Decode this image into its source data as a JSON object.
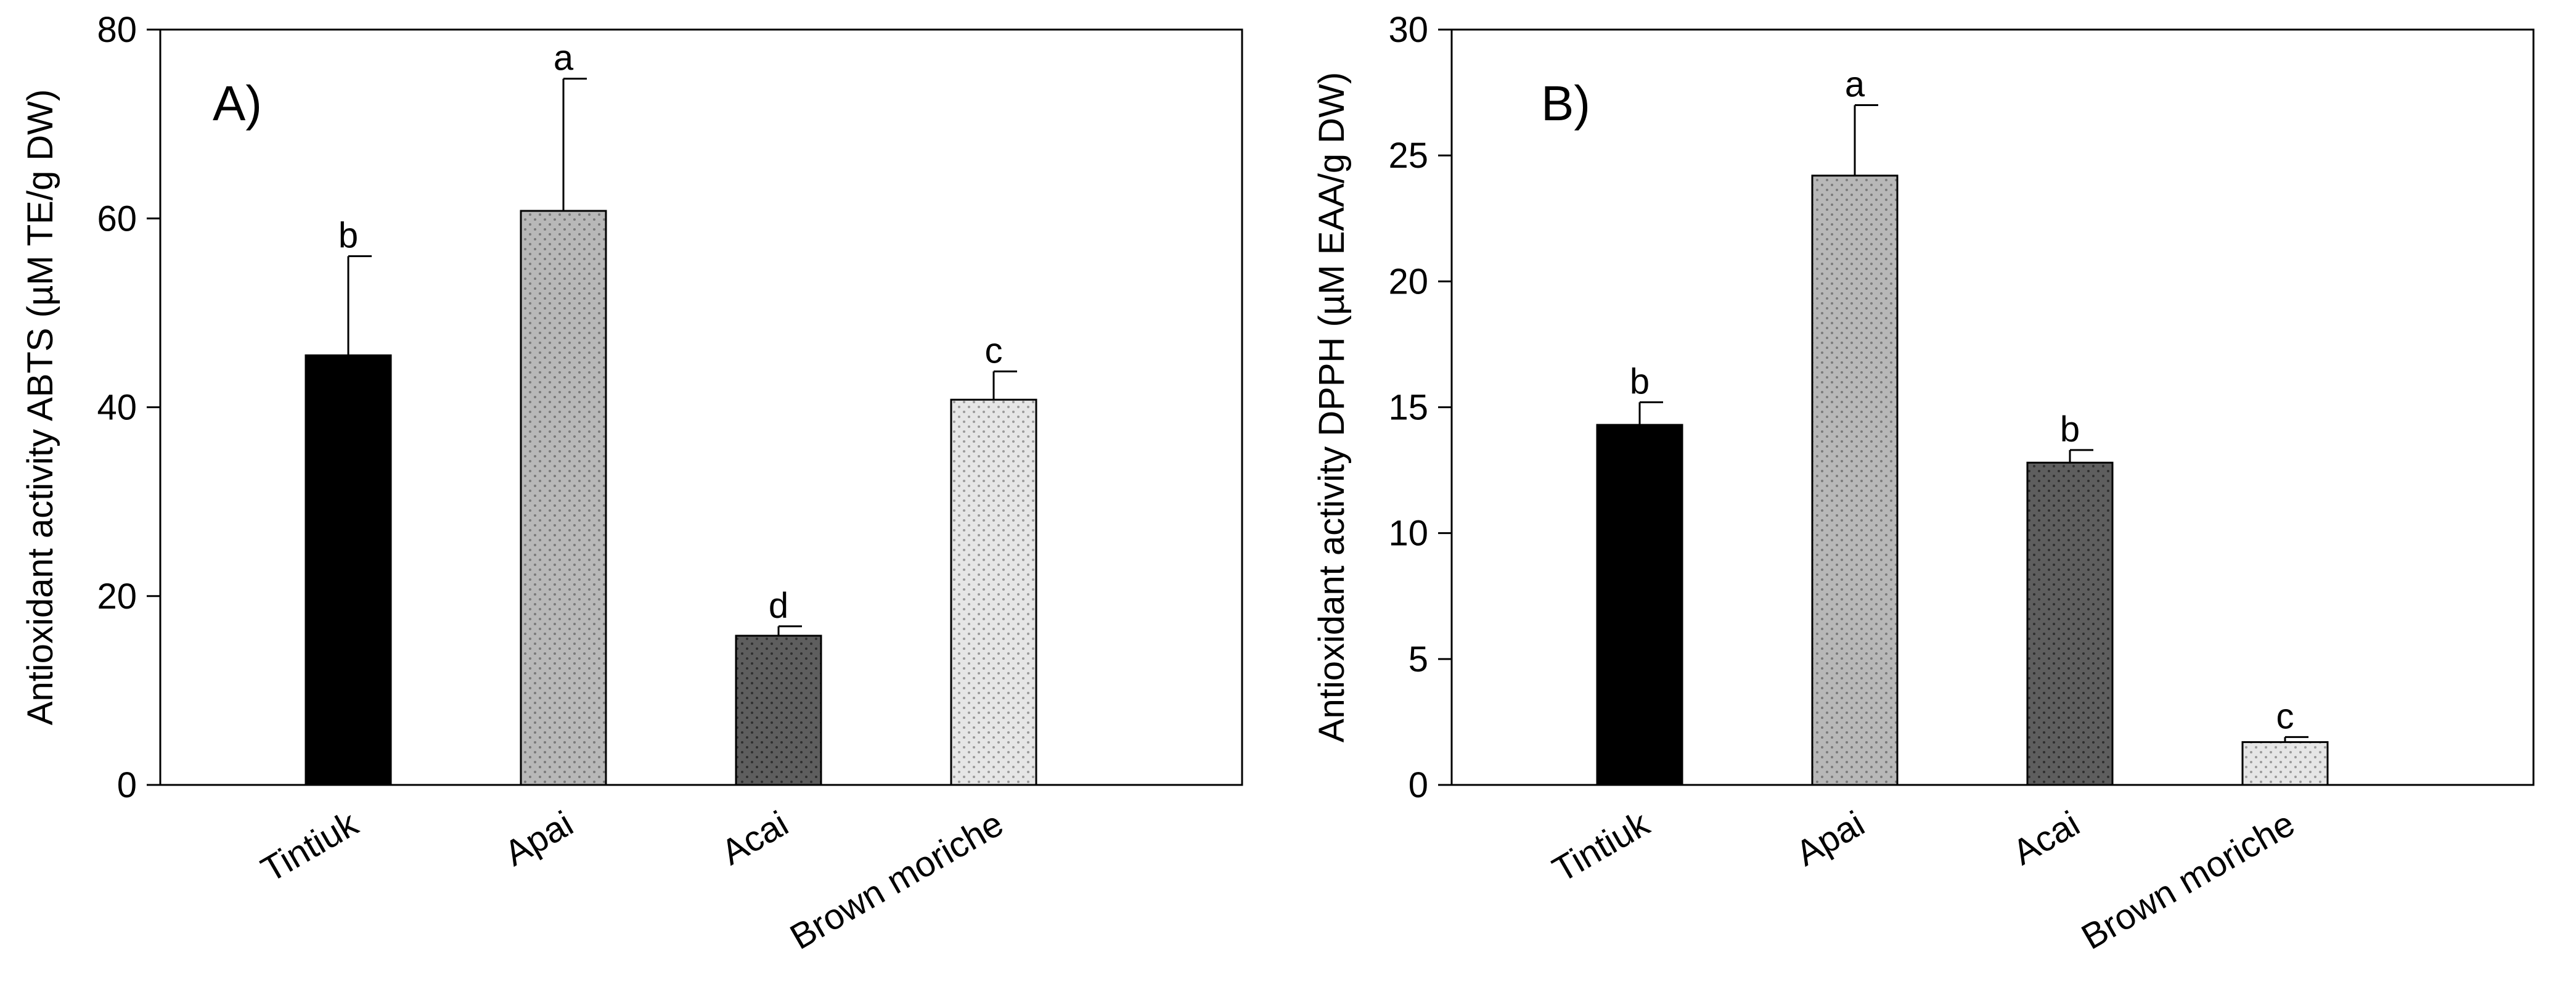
{
  "chart_data": [
    {
      "type": "bar",
      "panel_label": "A)",
      "title": "",
      "ylabel": "Antioxidant activity ABTS (µM TE/g DW)",
      "xlabel": "",
      "ylim": [
        0,
        80
      ],
      "yticks": [
        0,
        20,
        40,
        60,
        80
      ],
      "grid": false,
      "categories": [
        "Tintiuk",
        "Apai",
        "Acai",
        "Brown moriche"
      ],
      "values": [
        45.5,
        60.8,
        15.8,
        40.8
      ],
      "errors": [
        10.5,
        14.0,
        1.0,
        3.0
      ],
      "significance": [
        "b",
        "a",
        "d",
        "c"
      ],
      "colors": [
        "#000000",
        "#b8b8b8",
        "#5e5e5e",
        "#e6e6e6"
      ],
      "patterns": [
        "solid",
        "dots",
        "dots",
        "dots"
      ]
    },
    {
      "type": "bar",
      "panel_label": "B)",
      "title": "",
      "ylabel": "Antioxidant activity DPPH (µM EAA/g DW)",
      "xlabel": "",
      "ylim": [
        0,
        30
      ],
      "yticks": [
        0,
        5,
        10,
        15,
        20,
        25,
        30
      ],
      "grid": false,
      "categories": [
        "Tintiuk",
        "Apai",
        "Acai",
        "Brown moriche"
      ],
      "values": [
        14.3,
        24.2,
        12.8,
        1.7
      ],
      "errors": [
        0.9,
        2.8,
        0.5,
        0.2
      ],
      "significance": [
        "b",
        "a",
        "b",
        "c"
      ],
      "colors": [
        "#000000",
        "#b8b8b8",
        "#5e5e5e",
        "#e6e6e6"
      ],
      "patterns": [
        "solid",
        "dots",
        "dots",
        "dots"
      ]
    }
  ]
}
